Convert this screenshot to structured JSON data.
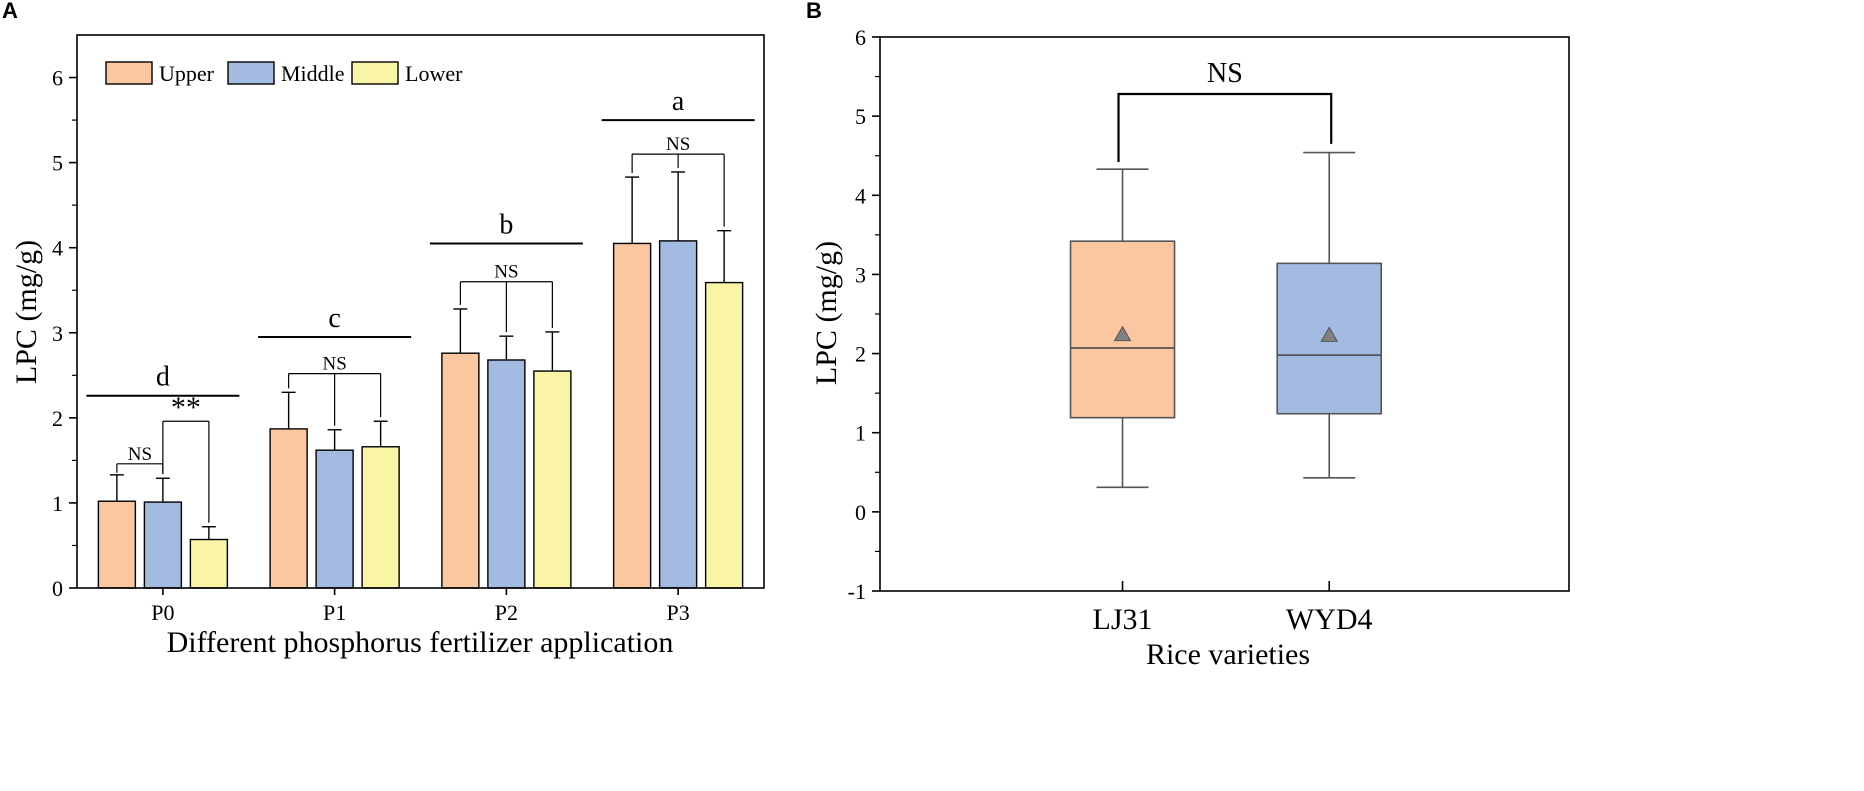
{
  "colors": {
    "upper": "#FBC7A1",
    "middle": "#A3BBE1",
    "lower": "#FAF4A6",
    "box_lj31": "#FBC7A1",
    "box_wyd4": "#A3BBE1",
    "mean_marker": "#808080",
    "box_edge": "#555555"
  },
  "chart_data": [
    {
      "panel": "A",
      "type": "bar",
      "xlabel": "Different phosphorus fertilizer application",
      "ylabel": "LPC (mg/g)",
      "ylim": [
        0,
        6.5
      ],
      "yticks": [
        "0",
        "1",
        "2",
        "3",
        "4",
        "5",
        "6"
      ],
      "categories": [
        "P0",
        "P1",
        "P2",
        "P3"
      ],
      "legend": {
        "position": "top-left",
        "entries": [
          "Upper",
          "Middle",
          "Lower"
        ]
      },
      "series": [
        {
          "name": "Upper",
          "values": [
            1.02,
            1.87,
            2.76,
            4.05
          ],
          "errors": [
            0.31,
            0.43,
            0.52,
            0.78
          ]
        },
        {
          "name": "Middle",
          "values": [
            1.01,
            1.62,
            2.68,
            4.08
          ],
          "errors": [
            0.28,
            0.24,
            0.28,
            0.81
          ]
        },
        {
          "name": "Lower",
          "values": [
            0.57,
            1.66,
            2.55,
            3.59
          ],
          "errors": [
            0.15,
            0.3,
            0.46,
            0.61
          ]
        }
      ],
      "group_letters": [
        {
          "category": "P0",
          "label": "d",
          "y": 2.26
        },
        {
          "category": "P1",
          "label": "c",
          "y": 2.95
        },
        {
          "category": "P2",
          "label": "b",
          "y": 4.05
        },
        {
          "category": "P3",
          "label": "a",
          "y": 5.5
        }
      ],
      "brackets": [
        {
          "category": "P0",
          "from": 0,
          "to": 1,
          "label": "NS",
          "y": 1.46
        },
        {
          "category": "P0",
          "from": 1,
          "to": 2,
          "label": "**",
          "y": 1.96
        },
        {
          "category": "P1",
          "from": 0,
          "to": 2,
          "label": "NS",
          "y": 2.52
        },
        {
          "category": "P2",
          "from": 0,
          "to": 2,
          "label": "NS",
          "y": 3.6
        },
        {
          "category": "P3",
          "from": 0,
          "to": 2,
          "label": "NS",
          "y": 5.1
        }
      ]
    },
    {
      "panel": "B",
      "type": "box",
      "xlabel": "Rice varieties",
      "ylabel": "LPC (mg/g)",
      "ylim": [
        -1,
        6
      ],
      "yticks": [
        "-1",
        "0",
        "1",
        "2",
        "3",
        "4",
        "5",
        "6"
      ],
      "categories": [
        "LJ31",
        "WYD4"
      ],
      "boxes": [
        {
          "name": "LJ31",
          "min": 0.31,
          "q1": 1.19,
          "median": 2.07,
          "q3": 3.42,
          "max": 4.33,
          "mean": 2.24
        },
        {
          "name": "WYD4",
          "min": 0.43,
          "q1": 1.24,
          "median": 1.98,
          "q3": 3.14,
          "max": 4.54,
          "mean": 2.23
        }
      ],
      "comparison": {
        "label": "NS",
        "y": 5.28
      }
    }
  ]
}
